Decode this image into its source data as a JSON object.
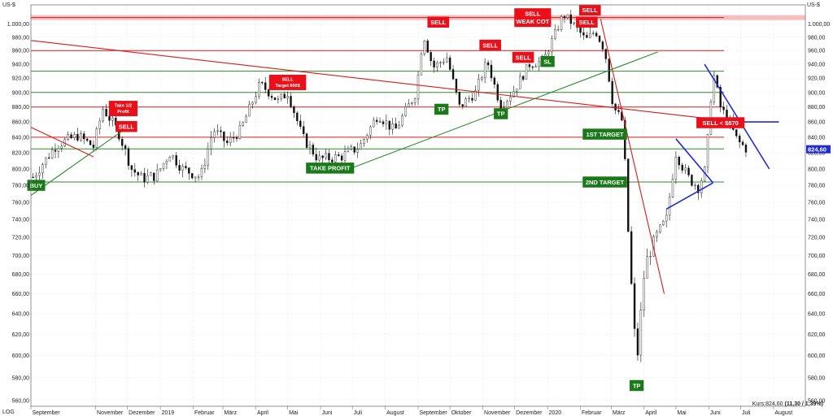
{
  "chart_data": {
    "type": "candlestick",
    "currency_left": "US-$",
    "currency_right": "US-$",
    "scale_mode": "LOG",
    "ylim": [
      555,
      1030
    ],
    "y_ticks": [
      560,
      580,
      600,
      620,
      640,
      660,
      680,
      700,
      720,
      740,
      760,
      780,
      800,
      820,
      840,
      860,
      880,
      900,
      920,
      940,
      960,
      980,
      1000
    ],
    "y_tick_labels": [
      "560,00",
      "580,00",
      "600,00",
      "620,00",
      "640,00",
      "660,00",
      "680,00",
      "700,00",
      "720,00",
      "740,00",
      "760,00",
      "780,00",
      "800,00",
      "820,00",
      "840,00",
      "860,00",
      "880,00",
      "900,00",
      "920,00",
      "940,00",
      "960,00",
      "980,00",
      "1.000,00"
    ],
    "x_start": "2018-09-01",
    "x_end": "2020-08-31",
    "x_labels": [
      {
        "label": "September",
        "date": "2018-09-01"
      },
      {
        "label": "November",
        "date": "2018-11-01"
      },
      {
        "label": "Dezember",
        "date": "2018-12-01"
      },
      {
        "label": "2019",
        "date": "2019-01-01"
      },
      {
        "label": "Februar",
        "date": "2019-02-01"
      },
      {
        "label": "März",
        "date": "2019-03-01"
      },
      {
        "label": "April",
        "date": "2019-04-01"
      },
      {
        "label": "Mai",
        "date": "2019-05-01"
      },
      {
        "label": "Juni",
        "date": "2019-06-01"
      },
      {
        "label": "Juli",
        "date": "2019-07-01"
      },
      {
        "label": "August",
        "date": "2019-08-01"
      },
      {
        "label": "September",
        "date": "2019-09-01"
      },
      {
        "label": "Oktober",
        "date": "2019-10-01"
      },
      {
        "label": "November",
        "date": "2019-11-01"
      },
      {
        "label": "Dezember",
        "date": "2019-12-01"
      },
      {
        "label": "2020",
        "date": "2020-01-01"
      },
      {
        "label": "Februar",
        "date": "2020-02-01"
      },
      {
        "label": "März",
        "date": "2020-03-01"
      },
      {
        "label": "April",
        "date": "2020-04-01"
      },
      {
        "label": "Mai",
        "date": "2020-05-01"
      },
      {
        "label": "Juni",
        "date": "2020-06-01"
      },
      {
        "label": "Juli",
        "date": "2020-07-01"
      },
      {
        "label": "August",
        "date": "2020-08-01"
      }
    ],
    "series_close": [
      {
        "x": "2018-09-03",
        "y": 790
      },
      {
        "x": "2018-09-25",
        "y": 830
      },
      {
        "x": "2018-10-15",
        "y": 842
      },
      {
        "x": "2018-10-30",
        "y": 828
      },
      {
        "x": "2018-11-08",
        "y": 878
      },
      {
        "x": "2018-11-22",
        "y": 848
      },
      {
        "x": "2018-12-05",
        "y": 800
      },
      {
        "x": "2018-12-15",
        "y": 788
      },
      {
        "x": "2018-12-28",
        "y": 792
      },
      {
        "x": "2019-01-10",
        "y": 820
      },
      {
        "x": "2019-01-22",
        "y": 800
      },
      {
        "x": "2019-02-08",
        "y": 790
      },
      {
        "x": "2019-02-20",
        "y": 850
      },
      {
        "x": "2019-03-05",
        "y": 832
      },
      {
        "x": "2019-03-18",
        "y": 850
      },
      {
        "x": "2019-04-05",
        "y": 912
      },
      {
        "x": "2019-04-22",
        "y": 888
      },
      {
        "x": "2019-05-01",
        "y": 900
      },
      {
        "x": "2019-05-15",
        "y": 840
      },
      {
        "x": "2019-05-30",
        "y": 812
      },
      {
        "x": "2019-06-20",
        "y": 815
      },
      {
        "x": "2019-07-08",
        "y": 828
      },
      {
        "x": "2019-07-25",
        "y": 870
      },
      {
        "x": "2019-08-10",
        "y": 848
      },
      {
        "x": "2019-08-30",
        "y": 900
      },
      {
        "x": "2019-09-06",
        "y": 985
      },
      {
        "x": "2019-09-15",
        "y": 935
      },
      {
        "x": "2019-09-28",
        "y": 950
      },
      {
        "x": "2019-10-10",
        "y": 880
      },
      {
        "x": "2019-10-25",
        "y": 900
      },
      {
        "x": "2019-11-05",
        "y": 945
      },
      {
        "x": "2019-11-18",
        "y": 880
      },
      {
        "x": "2019-12-01",
        "y": 905
      },
      {
        "x": "2019-12-15",
        "y": 940
      },
      {
        "x": "2019-12-28",
        "y": 945
      },
      {
        "x": "2020-01-08",
        "y": 985
      },
      {
        "x": "2020-01-16",
        "y": 1015
      },
      {
        "x": "2020-01-28",
        "y": 995
      },
      {
        "x": "2020-02-06",
        "y": 975
      },
      {
        "x": "2020-02-15",
        "y": 990
      },
      {
        "x": "2020-02-24",
        "y": 960
      },
      {
        "x": "2020-03-03",
        "y": 880
      },
      {
        "x": "2020-03-12",
        "y": 860
      },
      {
        "x": "2020-03-18",
        "y": 700
      },
      {
        "x": "2020-03-25",
        "y": 590
      },
      {
        "x": "2020-04-02",
        "y": 690
      },
      {
        "x": "2020-04-12",
        "y": 720
      },
      {
        "x": "2020-04-22",
        "y": 740
      },
      {
        "x": "2020-05-01",
        "y": 820
      },
      {
        "x": "2020-05-12",
        "y": 790
      },
      {
        "x": "2020-05-22",
        "y": 778
      },
      {
        "x": "2020-05-29",
        "y": 800
      },
      {
        "x": "2020-06-05",
        "y": 930
      },
      {
        "x": "2020-06-12",
        "y": 880
      },
      {
        "x": "2020-06-20",
        "y": 860
      },
      {
        "x": "2020-06-28",
        "y": 835
      },
      {
        "x": "2020-07-07",
        "y": 824.6
      }
    ],
    "horizontal_lines": [
      {
        "y": 1010,
        "color": "#d81b1b"
      },
      {
        "y": 960,
        "color": "#d81b1b"
      },
      {
        "y": 880,
        "color": "#d81b1b"
      },
      {
        "y": 840,
        "color": "#d81b1b"
      },
      {
        "y": 930,
        "color": "#2e8b2e"
      },
      {
        "y": 900,
        "color": "#2e8b2e"
      },
      {
        "y": 825,
        "color": "#2e8b2e"
      },
      {
        "y": 784,
        "color": "#2e8b2e"
      }
    ],
    "trend_lines": [
      {
        "from": {
          "x": "2018-09-01",
          "y": 975
        },
        "to": {
          "x": "2020-06-28",
          "y": 860
        },
        "color": "#d81b1b"
      },
      {
        "from": {
          "x": "2020-06-28",
          "y": 860
        },
        "to": {
          "x": "2020-08-06",
          "y": 860
        },
        "color": "#1f2bd6"
      },
      {
        "from": {
          "x": "2018-09-01",
          "y": 853
        },
        "to": {
          "x": "2018-10-30",
          "y": 815
        },
        "color": "#d81b1b"
      },
      {
        "from": {
          "x": "2018-09-01",
          "y": 768
        },
        "to": {
          "x": "2018-11-30",
          "y": 852
        },
        "color": "#2e8b2e"
      },
      {
        "from": {
          "x": "2019-06-18",
          "y": 795
        },
        "to": {
          "x": "2020-04-14",
          "y": 958
        },
        "color": "#2e8b2e"
      },
      {
        "from": {
          "x": "2020-02-20",
          "y": 1008
        },
        "to": {
          "x": "2020-04-20",
          "y": 660
        },
        "color": "#d81b1b"
      },
      {
        "from": {
          "x": "2020-05-01",
          "y": 838
        },
        "to": {
          "x": "2020-06-05",
          "y": 783
        },
        "color": "#1f2bd6"
      },
      {
        "from": {
          "x": "2020-04-22",
          "y": 752
        },
        "to": {
          "x": "2020-06-05",
          "y": 783
        },
        "color": "#1f2bd6"
      },
      {
        "from": {
          "x": "2020-05-28",
          "y": 940
        },
        "to": {
          "x": "2020-07-28",
          "y": 800
        },
        "color": "#1f2bd6"
      }
    ],
    "labels": [
      {
        "text": "SELL",
        "lines": [
          "SELL"
        ],
        "x": "2019-09-20",
        "y": 1003,
        "color": "#e8101a"
      },
      {
        "text": "SELL WEAK COT",
        "lines": [
          "SELL",
          "WEAK COT"
        ],
        "x": "2019-12-18",
        "y": 1010,
        "color": "#e8101a"
      },
      {
        "text": "SELL",
        "lines": [
          "SELL"
        ],
        "x": "2020-02-10",
        "y": 1022,
        "color": "#e8101a"
      },
      {
        "text": "SELL",
        "lines": [
          "SELL"
        ],
        "x": "2020-02-07",
        "y": 1003,
        "color": "#e8101a"
      },
      {
        "text": "SELL",
        "lines": [
          "SELL"
        ],
        "x": "2019-11-08",
        "y": 968,
        "color": "#e8101a"
      },
      {
        "text": "SELL",
        "lines": [
          "SELL"
        ],
        "x": "2019-12-09",
        "y": 950,
        "color": "#e8101a"
      },
      {
        "text": "SL",
        "lines": [
          "SL"
        ],
        "x": "2020-01-01",
        "y": 944,
        "color": "#1a7a1a"
      },
      {
        "text": "SELL Target 800$",
        "lines": [
          "SELL",
          "Target 800$"
        ],
        "x": "2019-05-01",
        "y": 914,
        "color": "#e8101a"
      },
      {
        "text": "Take 1/2 Profit",
        "lines": [
          "Take 1/2",
          "Profit"
        ],
        "x": "2018-11-27",
        "y": 878,
        "color": "#e8101a"
      },
      {
        "text": "SELL",
        "lines": [
          "SELL"
        ],
        "x": "2018-11-30",
        "y": 854,
        "color": "#e8101a"
      },
      {
        "text": "TP",
        "lines": [
          "TP"
        ],
        "x": "2019-09-23",
        "y": 877,
        "color": "#1a7a1a"
      },
      {
        "text": "TP",
        "lines": [
          "TP"
        ],
        "x": "2019-11-18",
        "y": 871,
        "color": "#1a7a1a"
      },
      {
        "text": "1ST TARGET",
        "lines": [
          "1ST TARGET"
        ],
        "x": "2020-02-24",
        "y": 844,
        "color": "#1a7a1a"
      },
      {
        "text": "SELL < $870",
        "lines": [
          "SELL < $870"
        ],
        "x": "2020-06-12",
        "y": 859,
        "color": "#e8101a"
      },
      {
        "text": "TAKE PROFIT",
        "lines": [
          "TAKE PROFIT"
        ],
        "x": "2019-06-10",
        "y": 801,
        "color": "#1a7a1a"
      },
      {
        "text": "2ND TARGET",
        "lines": [
          "2ND TARGET"
        ],
        "x": "2020-02-24",
        "y": 784,
        "color": "#1a7a1a"
      },
      {
        "text": "BUY",
        "lines": [
          "BUY"
        ],
        "x": "2018-09-06",
        "y": 780,
        "color": "#1a7a1a"
      },
      {
        "text": "TP",
        "lines": [
          "TP"
        ],
        "x": "2020-03-25",
        "y": 573,
        "color": "#1a7a1a"
      }
    ],
    "price_marker": {
      "text": "824,60",
      "y": 824.6,
      "color": "#1f2bd6"
    },
    "kurs_label": "Kurs:",
    "kurs_value": "824,60",
    "kurs_change": "(11,30 / 1,39%)"
  }
}
